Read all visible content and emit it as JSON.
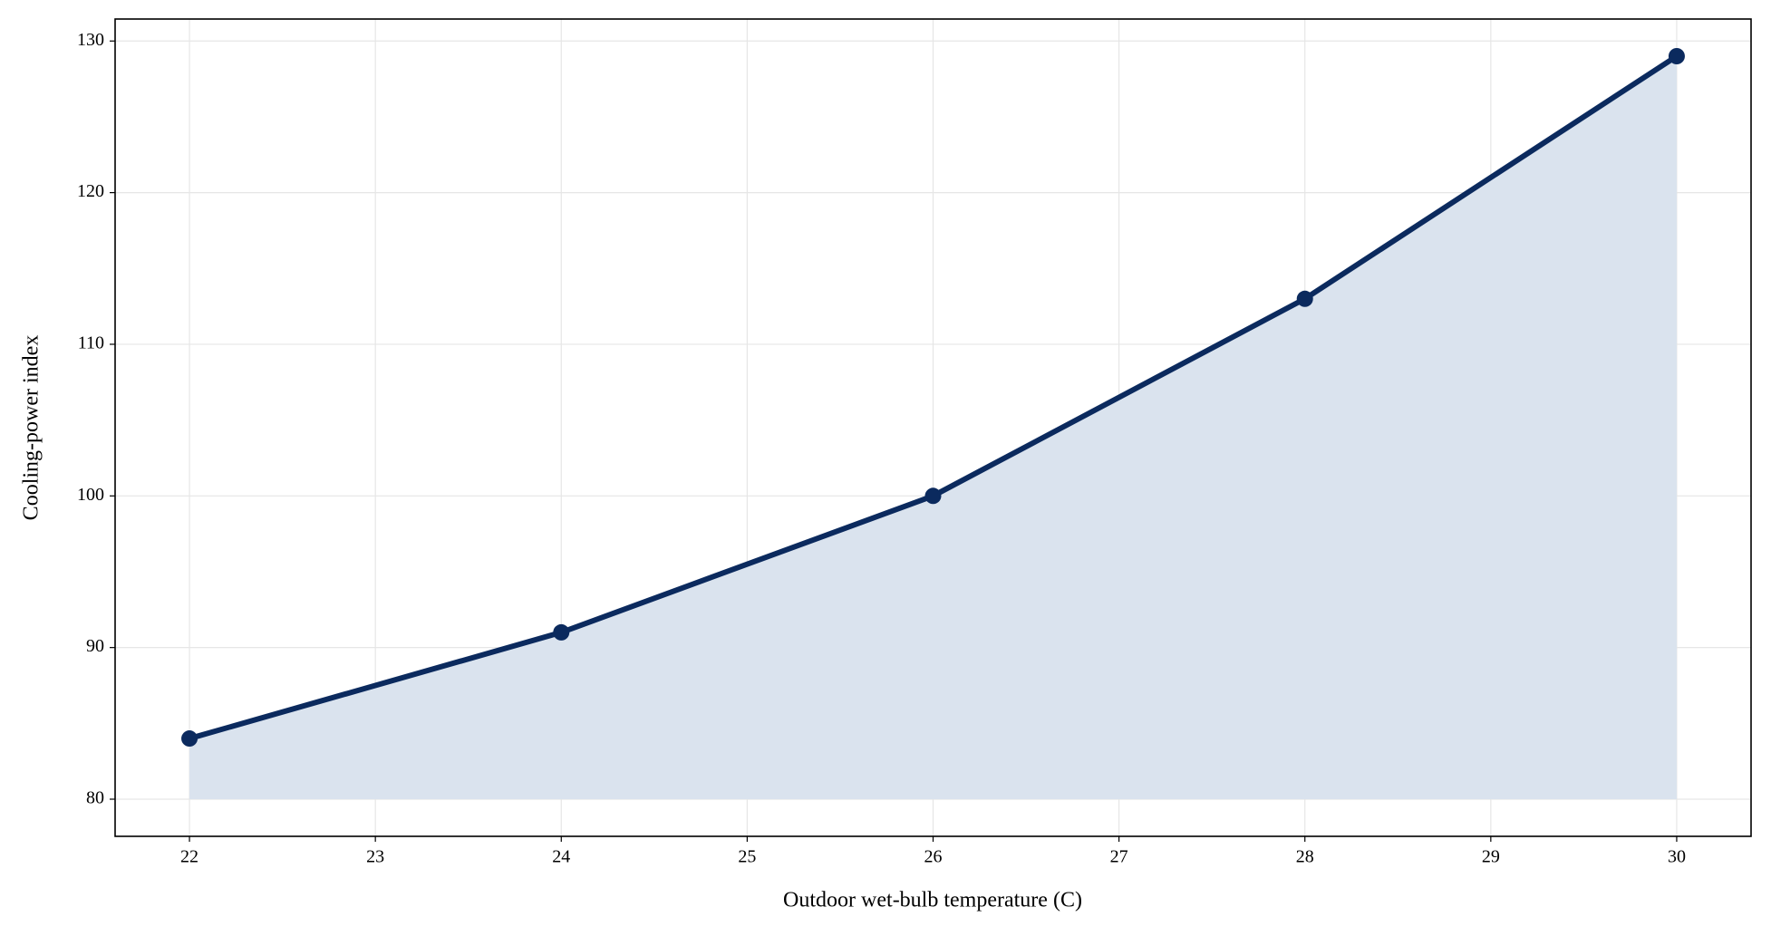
{
  "chart_data": {
    "type": "line",
    "x_label": "Outdoor wet-bulb temperature (C)",
    "y_label": "Cooling-power index",
    "x": [
      22,
      24,
      26,
      28,
      30
    ],
    "series": [
      {
        "color": "#0b2a5e",
        "values": [
          84,
          91,
          100,
          113,
          129
        ]
      }
    ],
    "fill_color": "#dae3ee",
    "fill_baseline": 80,
    "xlim": [
      21.6,
      30.4
    ],
    "ylim": [
      77.55,
      131.45
    ],
    "xticks": [
      22,
      23,
      24,
      25,
      26,
      27,
      28,
      29,
      30
    ],
    "yticks": [
      80,
      90,
      100,
      110,
      120,
      130
    ],
    "grid": true
  }
}
